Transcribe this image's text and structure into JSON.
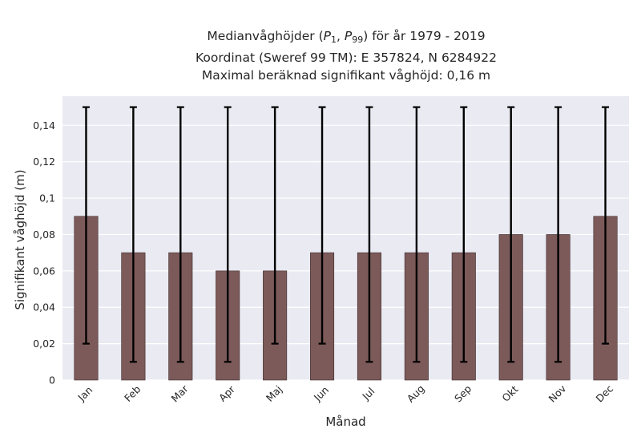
{
  "title": {
    "line1_prefix": "Medianvåghöjder (",
    "p_var": "P",
    "p1_sub": "1",
    "comma": ", ",
    "p99_sub": "99",
    "line1_suffix": ") för år 1979 - 2019",
    "line2": "Koordinat (Sweref 99 TM): E 357824, N 6284922",
    "line3": "Maximal beräknad signifikant våghöjd: 0,16 m"
  },
  "chart_data": {
    "type": "bar",
    "xlabel": "Månad",
    "ylabel": "Signifikant våghöjd (m)",
    "ylim": [
      0,
      0.156
    ],
    "yticks": [
      0,
      0.02,
      0.04,
      0.06,
      0.08,
      0.1,
      0.12,
      0.14
    ],
    "ytick_labels": [
      "0",
      "0,02",
      "0,04",
      "0,06",
      "0,08",
      "0,1",
      "0,12",
      "0,14"
    ],
    "categories": [
      "Jan",
      "Feb",
      "Mar",
      "Apr",
      "Maj",
      "Jun",
      "Jul",
      "Aug",
      "Sep",
      "Okt",
      "Nov",
      "Dec"
    ],
    "values": [
      0.09,
      0.07,
      0.07,
      0.06,
      0.06,
      0.07,
      0.07,
      0.07,
      0.07,
      0.08,
      0.08,
      0.09
    ],
    "p1": [
      0.02,
      0.01,
      0.01,
      0.01,
      0.02,
      0.02,
      0.01,
      0.01,
      0.01,
      0.01,
      0.01,
      0.02
    ],
    "p99": [
      0.15,
      0.15,
      0.15,
      0.15,
      0.15,
      0.15,
      0.15,
      0.15,
      0.15,
      0.15,
      0.15,
      0.15
    ],
    "grid": true,
    "colors": {
      "bar": "#7d5a5a",
      "bar_edge": "#3a2a2a",
      "error": "#000000",
      "background": "#eaeaf2",
      "grid": "#ffffff"
    }
  }
}
